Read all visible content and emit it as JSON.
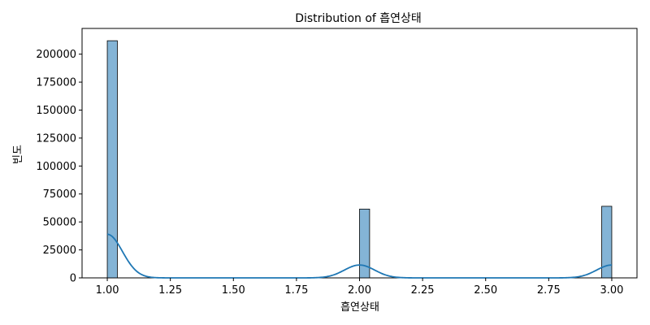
{
  "chart_data": {
    "type": "bar",
    "title": "Distribution of 흡연상태",
    "xlabel": "흡연상태",
    "ylabel": "빈도",
    "xlim": [
      0.9,
      3.1
    ],
    "ylim": [
      0,
      223000
    ],
    "x_ticks": [
      "1.00",
      "1.25",
      "1.50",
      "1.75",
      "2.00",
      "2.25",
      "2.50",
      "2.75",
      "3.00"
    ],
    "y_ticks": [
      "0",
      "25000",
      "50000",
      "75000",
      "100000",
      "125000",
      "150000",
      "175000",
      "200000"
    ],
    "bins": {
      "start": 1.0,
      "end": 3.0,
      "count": 50
    },
    "series": [
      {
        "type": "histogram",
        "bars": [
          {
            "x_start": 1.0,
            "x_end": 1.04,
            "value": 212000
          },
          {
            "x_start": 2.0,
            "x_end": 2.04,
            "value": 61500
          },
          {
            "x_start": 2.96,
            "x_end": 3.0,
            "value": 64000
          }
        ],
        "color": "#1f77b4"
      },
      {
        "type": "kde",
        "peaks": [
          {
            "x": 1.0,
            "y": 39000
          },
          {
            "x": 2.0,
            "y": 11500
          },
          {
            "x": 3.0,
            "y": 11500
          }
        ],
        "color": "#1f77b4"
      }
    ],
    "grid": false
  }
}
